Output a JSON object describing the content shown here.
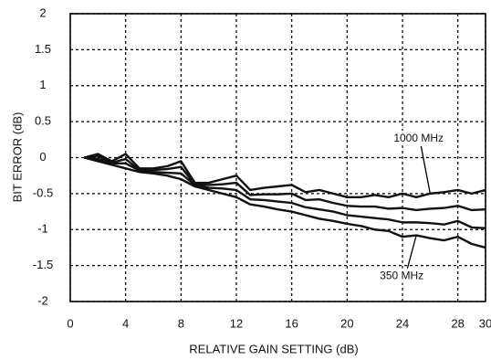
{
  "chart_data": {
    "type": "line",
    "xlabel": "RELATIVE GAIN SETTING (dB)",
    "ylabel": "BIT ERROR (dB)",
    "x": [
      1,
      2,
      3,
      4,
      5,
      6,
      7,
      8,
      9,
      10,
      11,
      12,
      13,
      14,
      15,
      16,
      17,
      18,
      19,
      20,
      21,
      22,
      23,
      24,
      25,
      26,
      27,
      28,
      29,
      30
    ],
    "series": [
      {
        "color": "#111111",
        "values": [
          0,
          0.05,
          -0.05,
          0.05,
          -0.15,
          -0.15,
          -0.12,
          -0.05,
          -0.35,
          -0.35,
          -0.3,
          -0.25,
          -0.45,
          -0.42,
          -0.4,
          -0.38,
          -0.48,
          -0.45,
          -0.5,
          -0.55,
          -0.55,
          -0.52,
          -0.55,
          -0.5,
          -0.55,
          -0.5,
          -0.48,
          -0.45,
          -0.5,
          -0.45
        ]
      },
      {
        "color": "#111111",
        "values": [
          0,
          0.02,
          -0.07,
          -0.02,
          -0.17,
          -0.17,
          -0.16,
          -0.13,
          -0.37,
          -0.38,
          -0.37,
          -0.35,
          -0.52,
          -0.51,
          -0.51,
          -0.5,
          -0.59,
          -0.58,
          -0.63,
          -0.67,
          -0.68,
          -0.68,
          -0.71,
          -0.7,
          -0.73,
          -0.71,
          -0.7,
          -0.67,
          -0.73,
          -0.72
        ]
      },
      {
        "color": "#111111",
        "values": [
          0,
          -0.02,
          -0.08,
          -0.08,
          -0.18,
          -0.2,
          -0.21,
          -0.22,
          -0.38,
          -0.42,
          -0.43,
          -0.45,
          -0.58,
          -0.59,
          -0.61,
          -0.63,
          -0.69,
          -0.72,
          -0.75,
          -0.8,
          -0.82,
          -0.84,
          -0.86,
          -0.9,
          -0.9,
          -0.91,
          -0.93,
          -0.88,
          -0.97,
          -0.98
        ]
      },
      {
        "color": "#111111",
        "values": [
          0,
          -0.05,
          -0.1,
          -0.15,
          -0.2,
          -0.22,
          -0.25,
          -0.3,
          -0.4,
          -0.45,
          -0.5,
          -0.55,
          -0.65,
          -0.68,
          -0.72,
          -0.75,
          -0.8,
          -0.85,
          -0.88,
          -0.92,
          -0.95,
          -1.0,
          -1.02,
          -1.1,
          -1.08,
          -1.12,
          -1.15,
          -1.1,
          -1.2,
          -1.25
        ]
      }
    ],
    "annotations": [
      {
        "text": "1000 MHz",
        "x": 26,
        "y": -0.5
      },
      {
        "text": "350 MHz",
        "x": 25,
        "y": -1.08
      }
    ],
    "xlim": [
      0,
      30
    ],
    "xticks": [
      0,
      4,
      8,
      12,
      16,
      20,
      24,
      28,
      30
    ],
    "ylim": [
      -2,
      2
    ],
    "yticks": [
      2,
      1.5,
      1,
      0.5,
      0,
      -0.5,
      -1,
      -1.5,
      -2
    ],
    "grid": true
  }
}
